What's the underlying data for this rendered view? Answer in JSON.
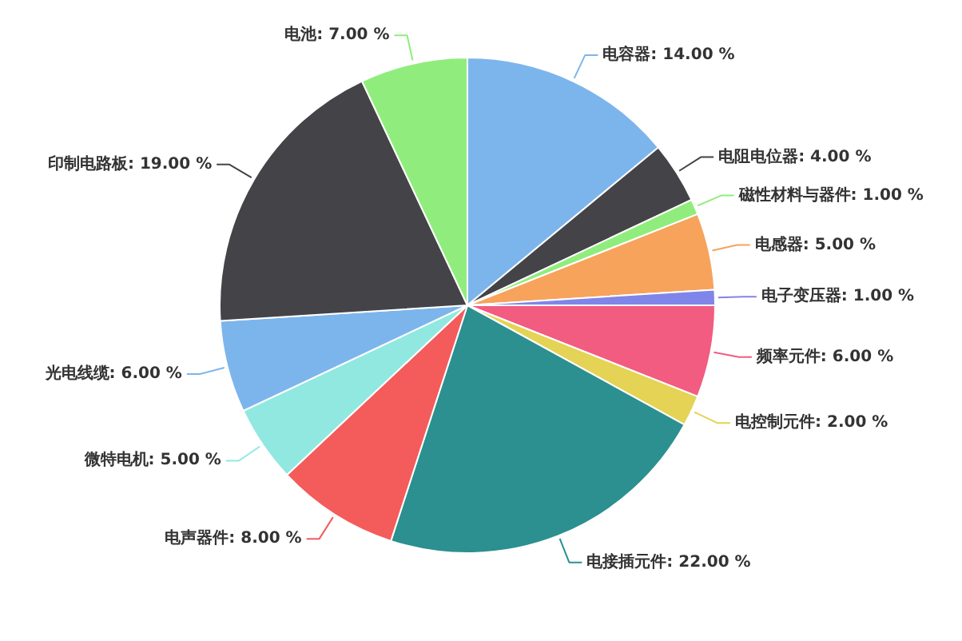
{
  "chart_data": {
    "type": "pie",
    "categories": [
      "电容器",
      "电阻电位器",
      "磁性材料与器件",
      "电感器",
      "电子变压器",
      "频率元件",
      "电控制元件",
      "电接插元件",
      "电声器件",
      "微特电机",
      "光电线缆",
      "印制电路板",
      "电池"
    ],
    "values": [
      14,
      4,
      1,
      5,
      1,
      6,
      2,
      22,
      8,
      5,
      6,
      19,
      7
    ],
    "colors": [
      "#7cb5ec",
      "#434348",
      "#90ed7d",
      "#f7a35c",
      "#8085e9",
      "#f15c80",
      "#e4d354",
      "#2b908f",
      "#f45b5b",
      "#91e8e1",
      "#7cb5ec",
      "#434348",
      "#90ed7d"
    ],
    "value_labels": [
      "14.00 %",
      "4.00 %",
      "1.00 %",
      "5.00 %",
      "1.00 %",
      "6.00 %",
      "2.00 %",
      "22.00 %",
      "8.00 %",
      "5.00 %",
      "6.00 %",
      "19.00 %",
      "7.00 %"
    ]
  }
}
